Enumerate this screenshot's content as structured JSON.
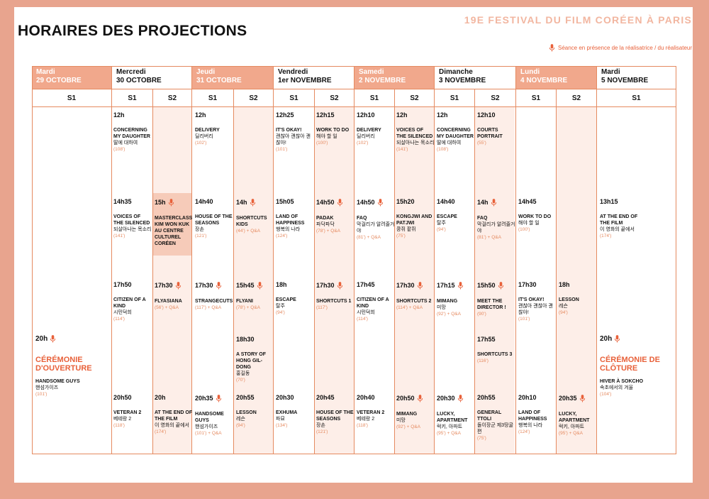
{
  "title": "HORAIRES DES PROJECTIONS",
  "festival": "19E FESTIVAL DU FILM CORÉEN À PARIS",
  "legend": "Séance en présence de la réalisatrice / du réalisateur",
  "colors": {
    "accent": "#e8613a",
    "header_fill": "#f1a88c",
    "border": "#e58a60",
    "pink_bg": "#fdeee8",
    "frame": "#e8a48e"
  },
  "days": [
    {
      "name": "Mardi",
      "date": "29 OCTOBRE"
    },
    {
      "name": "Mercredi",
      "date": "30 OCTOBRE"
    },
    {
      "name": "Jeudi",
      "date": "31 OCTOBRE"
    },
    {
      "name": "Vendredi",
      "date": "1er NOVEMBRE"
    },
    {
      "name": "Samedi",
      "date": "2 NOVEMBRE"
    },
    {
      "name": "Dimanche",
      "date": "3 NOVEMBRE"
    },
    {
      "name": "Lundi",
      "date": "4 NOVEMBRE"
    },
    {
      "name": "Mardi",
      "date": "5 NOVEMBRE"
    }
  ],
  "screens": {
    "s1": "S1",
    "s2": "S2"
  },
  "opening": {
    "time": "20h",
    "label": "CÉRÉMONIE D'OUVERTURE",
    "film": "HANDSOME GUYS",
    "korean": "핸섬가이즈",
    "duration": "(101')"
  },
  "closing": {
    "time": "20h",
    "label": "CÉRÉMONIE DE CLÔTURE",
    "film": "HIVER À SOKCHO",
    "korean": "속초에서의 겨울",
    "duration": "(104')"
  },
  "events": [
    {
      "time": "12h",
      "film": "CONCERNING MY DAUGHTER",
      "korean": "딸에 대하여",
      "duration": "(108')",
      "mic": false
    },
    {
      "time": "14h35",
      "film": "VOICES OF THE SILENCED",
      "korean": "되살아나는 목소리",
      "duration": "(141')",
      "mic": false
    },
    {
      "time": "17h50",
      "film": "CITIZEN OF A KIND",
      "korean": "시민덕희",
      "duration": "(114')",
      "mic": false
    },
    {
      "time": "20h50",
      "film": "VETERAN 2",
      "korean": "베테랑 2",
      "duration": "(118')",
      "mic": false
    },
    {
      "time": "15h",
      "film": "MASTERCLASS KIM WON KUK AU CENTRE CULTUREL CORÉEN",
      "korean": "",
      "duration": "",
      "mic": true
    },
    {
      "time": "17h30",
      "film": "FLYASIANA",
      "korean": "",
      "duration": "(56') + Q&A",
      "mic": true
    },
    {
      "time": "20h",
      "film": "AT THE END OF THE FILM",
      "korean": "이 영화의 끝에서",
      "duration": "(174')",
      "mic": false
    },
    {
      "time": "12h",
      "film": "DELIVERY",
      "korean": "딜리버리",
      "duration": "(102')",
      "mic": false
    },
    {
      "time": "14h40",
      "film": "HOUSE OF THE SEASONS",
      "korean": "장손",
      "duration": "(121')",
      "mic": false
    },
    {
      "time": "17h30",
      "film": "STRANGECUTS",
      "korean": "",
      "duration": "(117') + Q&A",
      "mic": true
    },
    {
      "time": "20h35",
      "film": "HANDSOME GUYS",
      "korean": "핸섬가이즈",
      "duration": "(101') + Q&A",
      "mic": true
    },
    {
      "time": "14h",
      "film": "SHORTCUTS KIDS",
      "korean": "",
      "duration": "(44') + Q&A",
      "mic": true
    },
    {
      "time": "15h45",
      "film": "FLYANI",
      "korean": "",
      "duration": "(78') + Q&A",
      "mic": true
    },
    {
      "time": "18h30",
      "film": "A STORY OF HONG GIL-DONG",
      "korean": "홍길동",
      "duration": "(70')",
      "mic": false
    },
    {
      "time": "20h55",
      "film": "LESSON",
      "korean": "레슨",
      "duration": "(94')",
      "mic": false
    },
    {
      "time": "12h25",
      "film": "IT'S OKAY!",
      "korean": "괜찮아 괜찮아 괜찮아!",
      "duration": "(101')",
      "mic": false
    },
    {
      "time": "15h05",
      "film": "LAND OF HAPPINESS",
      "korean": "행복의 나라",
      "duration": "(124')",
      "mic": false
    },
    {
      "time": "18h",
      "film": "ESCAPE",
      "korean": "탈주",
      "duration": "(94')",
      "mic": false
    },
    {
      "time": "20h30",
      "film": "EXHUMA",
      "korean": "파묘",
      "duration": "(134')",
      "mic": false
    },
    {
      "time": "12h15",
      "film": "WORK TO DO",
      "korean": "해야 할 일",
      "duration": "(100')",
      "mic": false
    },
    {
      "time": "14h50",
      "film": "PADAK",
      "korean": "파닥파닥",
      "duration": "(78') + Q&A",
      "mic": true
    },
    {
      "time": "17h30",
      "film": "SHORTCUTS 1",
      "korean": "",
      "duration": "(117')",
      "mic": true
    },
    {
      "time": "20h45",
      "film": "HOUSE OF THE SEASONS",
      "korean": "장손",
      "duration": "(121')",
      "mic": false
    },
    {
      "time": "12h10",
      "film": "DELIVERY",
      "korean": "딜리버리",
      "duration": "(102')",
      "mic": false
    },
    {
      "time": "14h50",
      "film": "FAQ",
      "korean": "막걸리가 알려줄거야",
      "duration": "(81') + Q&A",
      "mic": true
    },
    {
      "time": "17h45",
      "film": "CITIZEN OF A KIND",
      "korean": "시민덕희",
      "duration": "(114')",
      "mic": false
    },
    {
      "time": "20h40",
      "film": "VETERAN 2",
      "korean": "베테랑 2",
      "duration": "(118')",
      "mic": false
    },
    {
      "time": "12h",
      "film": "VOICES OF THE SILENCED",
      "korean": "되살아나는 목소리",
      "duration": "(141')",
      "mic": false
    },
    {
      "time": "15h20",
      "film": "KONGJWI AND PATJWI",
      "korean": "콩쥐 팥쥐",
      "duration": "(75')",
      "mic": false
    },
    {
      "time": "17h30",
      "film": "SHORTCUTS 2",
      "korean": "",
      "duration": "(114') + Q&A",
      "mic": true
    },
    {
      "time": "20h50",
      "film": "MIMANG",
      "korean": "미망",
      "duration": "(92') + Q&A",
      "mic": true
    },
    {
      "time": "12h",
      "film": "CONCERNING MY DAUGHTER",
      "korean": "딸에 대하여",
      "duration": "(108')",
      "mic": false
    },
    {
      "time": "14h40",
      "film": "ESCAPE",
      "korean": "탈주",
      "duration": "(94')",
      "mic": false
    },
    {
      "time": "17h15",
      "film": "MIMANG",
      "korean": "미망",
      "duration": "(92') + Q&A",
      "mic": true
    },
    {
      "time": "20h30",
      "film": "LUCKY, APARTMENT",
      "korean": "럭키, 아파트",
      "duration": "(95') + Q&A",
      "mic": true
    },
    {
      "time": "12h10",
      "film": "COURTS PORTRAIT",
      "korean": "",
      "duration": "(55')",
      "mic": false
    },
    {
      "time": "14h",
      "film": "FAQ",
      "korean": "막걸리가 알려줄거야",
      "duration": "(81') + Q&A",
      "mic": true
    },
    {
      "time": "15h50",
      "film": "MEET THE DIRECTOR !",
      "korean": "",
      "duration": "(90')",
      "mic": true
    },
    {
      "time": "17h55",
      "film": "SHORTCUTS 3",
      "korean": "",
      "duration": "(116')",
      "mic": false
    },
    {
      "time": "20h55",
      "film": "GENERAL TTOLI",
      "korean": "돌이장군 제3땅굴편",
      "duration": "(75')",
      "mic": false
    },
    {
      "time": "14h45",
      "film": "WORK TO DO",
      "korean": "해야 할 일",
      "duration": "(100')",
      "mic": false
    },
    {
      "time": "17h30",
      "film": "IT'S OKAY!",
      "korean": "괜찮아 괜찮아 괜찮아!",
      "duration": "(101')",
      "mic": false
    },
    {
      "time": "20h10",
      "film": "LAND OF HAPPINESS",
      "korean": "행복의 나라",
      "duration": "(124')",
      "mic": false
    },
    {
      "time": "18h",
      "film": "LESSON",
      "korean": "레슨",
      "duration": "(94')",
      "mic": false
    },
    {
      "time": "20h35",
      "film": "LUCKY, APARTMENT",
      "korean": "럭키, 아파트",
      "duration": "(95') + Q&A",
      "mic": true
    },
    {
      "time": "13h15",
      "film": "AT THE END OF THE FILM",
      "korean": "이 영화의 끝에서",
      "duration": "(174')",
      "mic": false
    }
  ]
}
